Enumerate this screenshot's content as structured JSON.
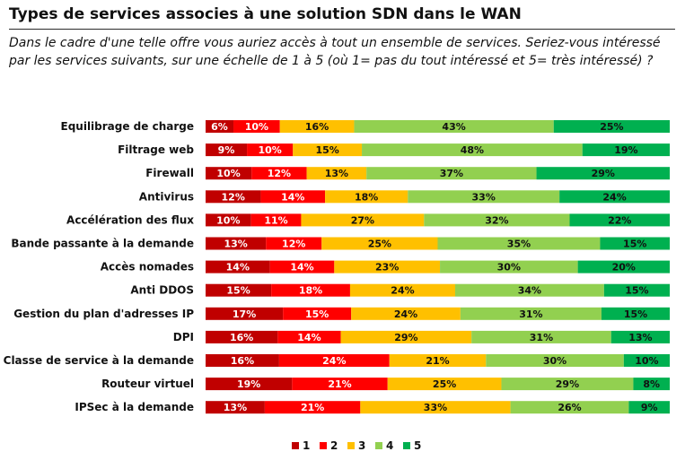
{
  "header": {
    "title": "Types de services associes à une solution SDN dans le WAN",
    "question": "Dans le cadre d'une telle offre vous auriez accès à tout un ensemble de services. Seriez-vous intéressé par les services suivants, sur une échelle de 1 à 5 (où 1= pas du tout intéressé et 5= très intéressé) ?"
  },
  "chart_data": {
    "type": "bar",
    "orientation": "horizontal",
    "stacked": "100%",
    "title": "",
    "xlabel": "",
    "ylabel": "",
    "grid": false,
    "legend": "bottom",
    "categories": [
      "Equilibrage de charge",
      "Filtrage web",
      "Firewall",
      "Antivirus",
      "Accélération des flux",
      "Bande passante à la demande",
      "Accès nomades",
      "Anti DDOS",
      "Gestion du plan d'adresses IP",
      "DPI",
      "Classe de service à la demande",
      "Routeur virtuel",
      "IPSec à la demande"
    ],
    "series": [
      {
        "name": "1",
        "color": "#C00000",
        "label_color": "#ffffff",
        "values": [
          6,
          9,
          10,
          12,
          10,
          13,
          14,
          15,
          17,
          16,
          16,
          19,
          13
        ]
      },
      {
        "name": "2",
        "color": "#FF0000",
        "label_color": "#ffffff",
        "values": [
          10,
          10,
          12,
          14,
          11,
          12,
          14,
          18,
          15,
          14,
          24,
          21,
          21
        ]
      },
      {
        "name": "3",
        "color": "#FFC000",
        "label_color": "#111111",
        "values": [
          16,
          15,
          13,
          18,
          27,
          25,
          23,
          24,
          24,
          29,
          21,
          25,
          33
        ]
      },
      {
        "name": "4",
        "color": "#92D050",
        "label_color": "#111111",
        "values": [
          43,
          48,
          37,
          33,
          32,
          35,
          30,
          34,
          31,
          31,
          30,
          29,
          26
        ]
      },
      {
        "name": "5",
        "color": "#00B050",
        "label_color": "#111111",
        "values": [
          25,
          19,
          29,
          24,
          22,
          15,
          20,
          15,
          15,
          13,
          10,
          8,
          9
        ]
      }
    ],
    "value_suffix": "%"
  }
}
